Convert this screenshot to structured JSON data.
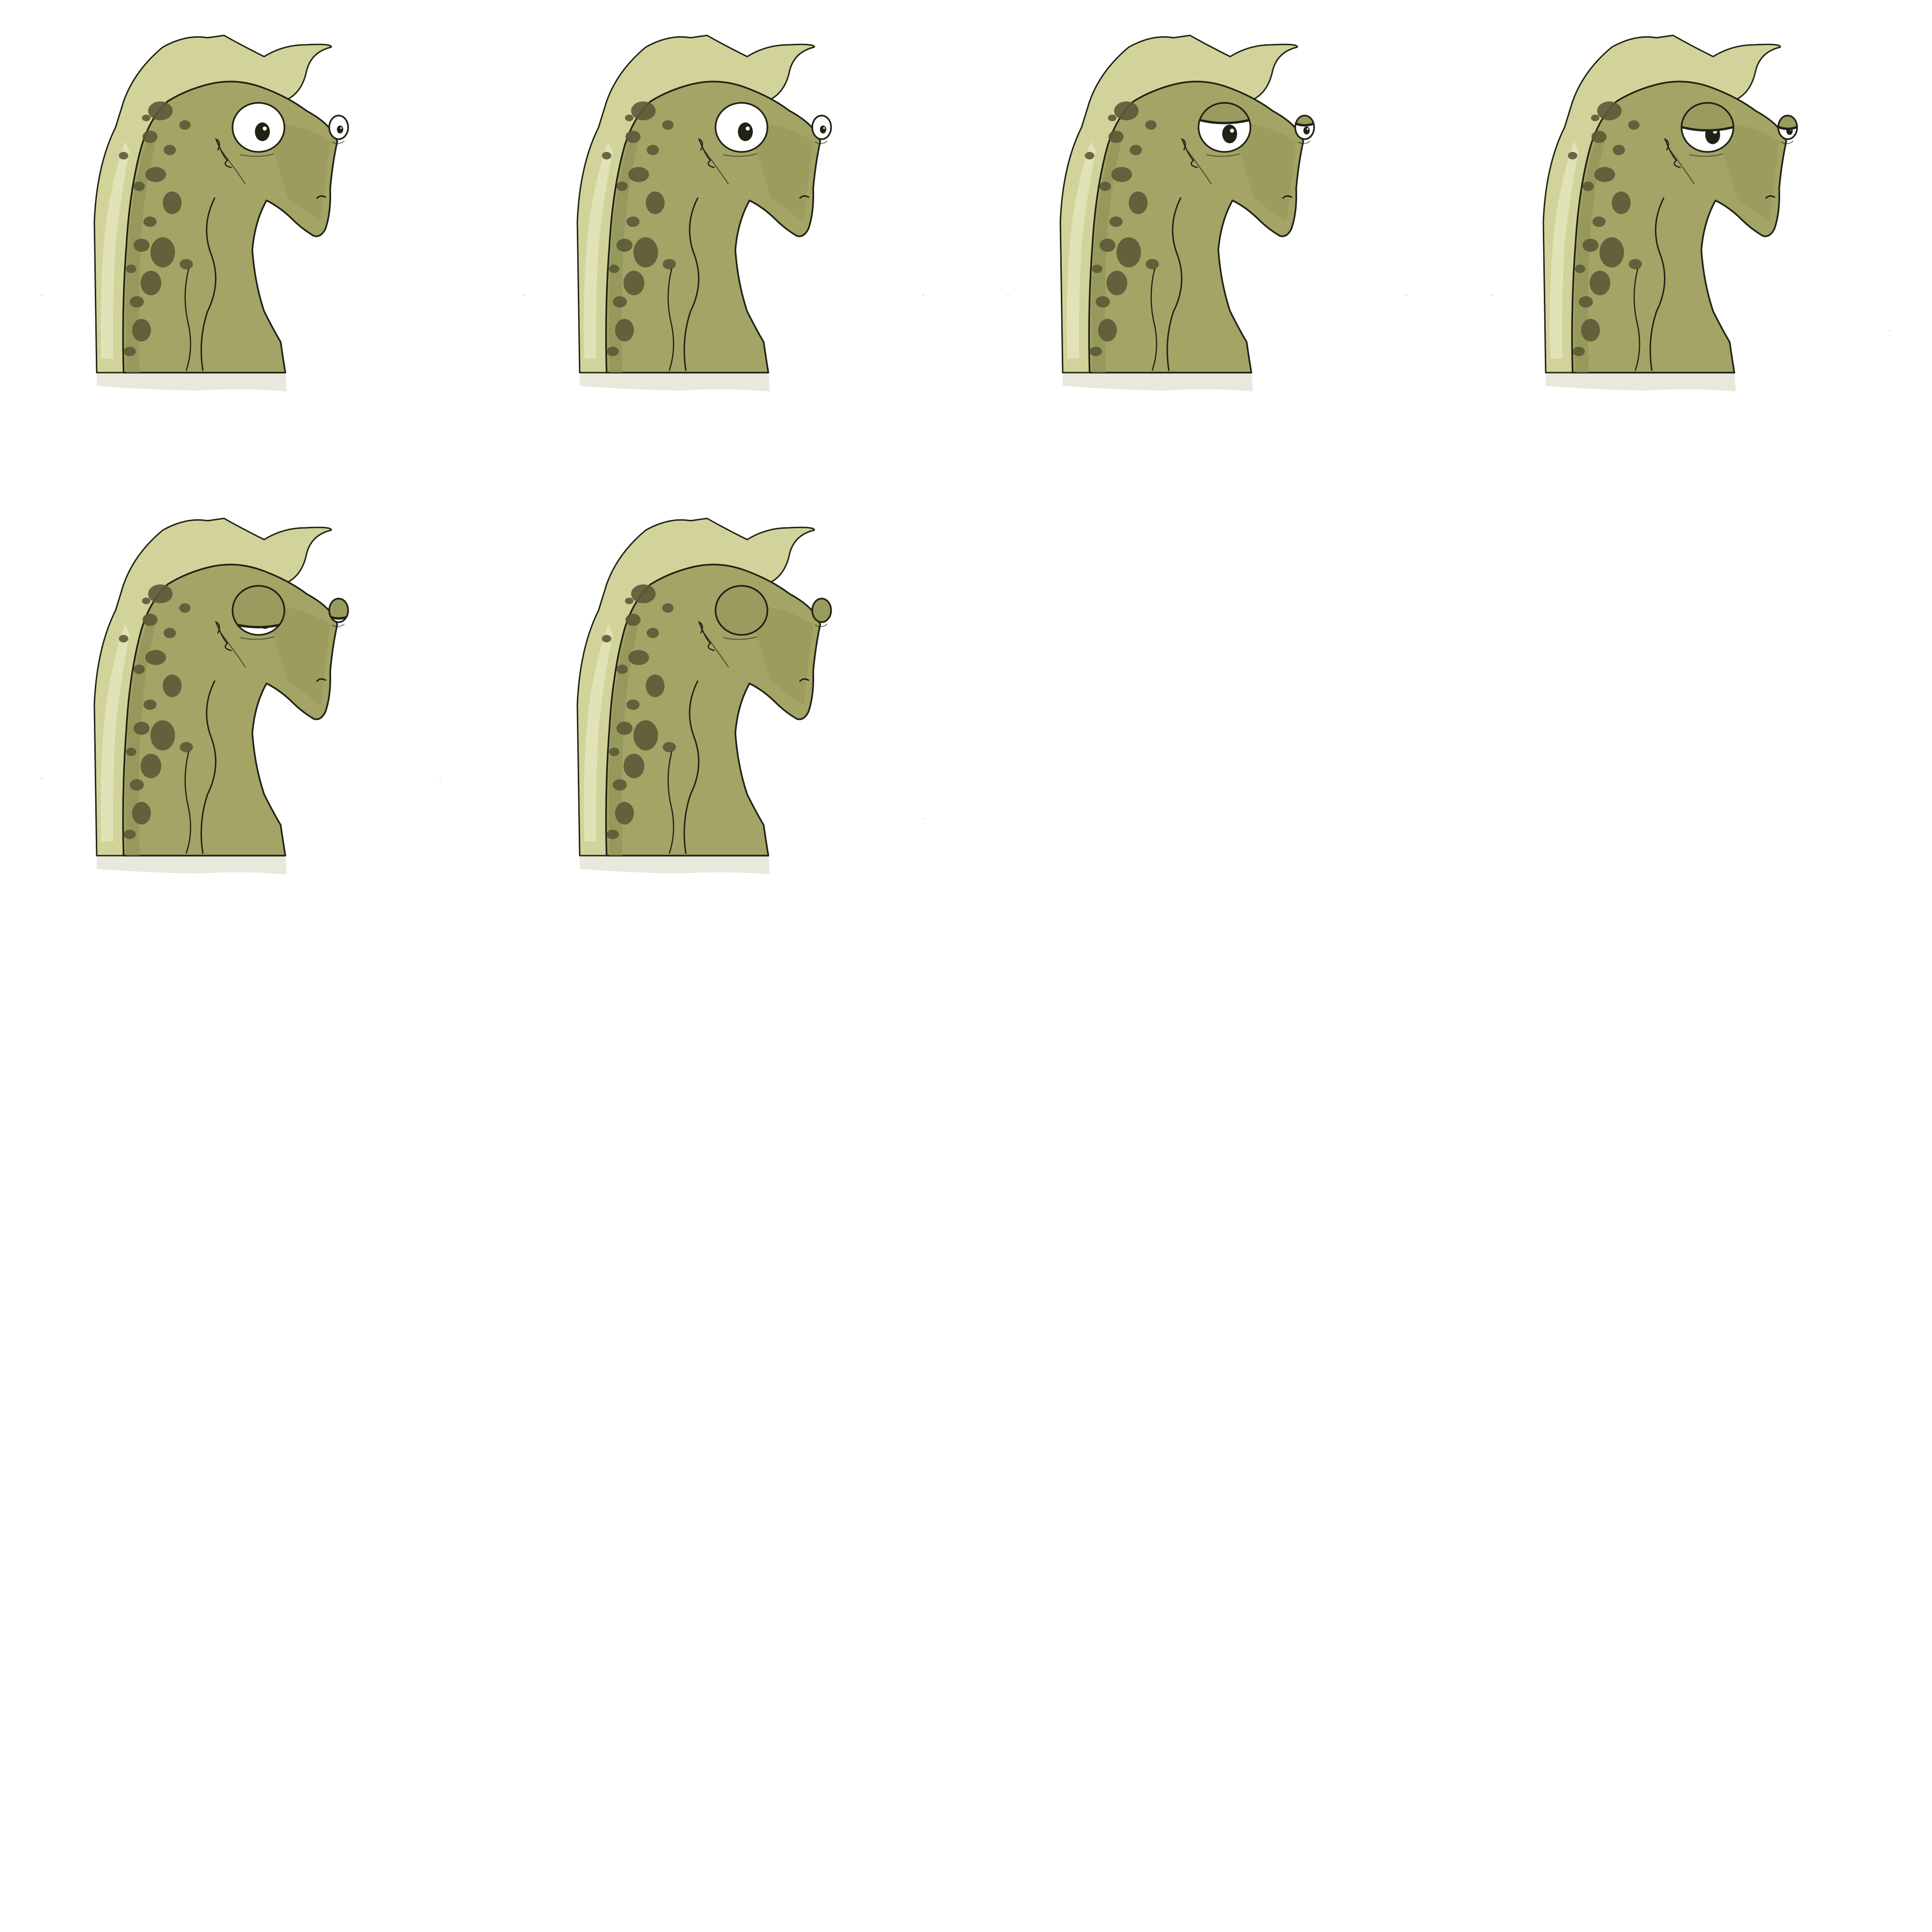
{
  "sheet": {
    "background_color": "#ffffff",
    "grid_columns": 4,
    "grid_rows": 4,
    "frame_count": 6
  },
  "palette": {
    "outline": "#1f2214",
    "frill_light": "#d2d39a",
    "frill_highlight": "#e6e6bf",
    "skin": "#a3a466",
    "skin_dark": "#8e8f54",
    "spots": "#5b5a37",
    "ground_shadow": "#e8e9dc",
    "eye_white": "#ffffff",
    "eyelid": "#9a9b5f"
  },
  "frames": [
    {
      "expression": "eyes-wide-open",
      "pupil_icon": "eye-open-icon"
    },
    {
      "expression": "eyes-wide-open-looking-down",
      "pupil_icon": "eye-open-icon"
    },
    {
      "expression": "eyes-half-lidded",
      "pupil_icon": "eye-half-lidded-icon"
    },
    {
      "expression": "eyes-half-lidded-sleepy",
      "pupil_icon": "eye-half-lidded-icon"
    },
    {
      "expression": "eyes-nearly-closed",
      "pupil_icon": "eye-nearly-closed-icon"
    },
    {
      "expression": "eyes-closed",
      "pupil_icon": "eye-closed-icon"
    }
  ]
}
